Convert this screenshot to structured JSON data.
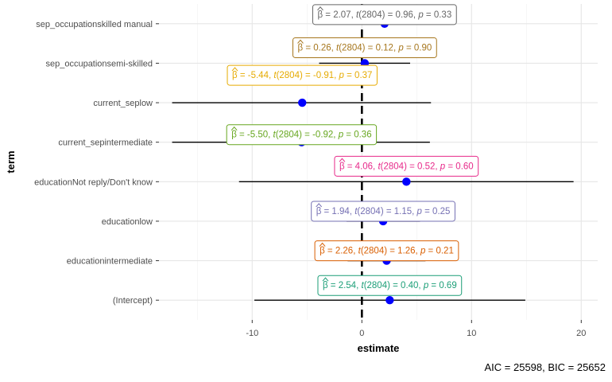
{
  "chart_data": {
    "type": "scatter",
    "xlabel": "estimate",
    "ylabel": "term",
    "xlim": [
      -18.5,
      21.5
    ],
    "x_ticks": [
      -10,
      0,
      10,
      20
    ],
    "reference_line_x": 0,
    "grid": true,
    "caption": "AIC = 25598, BIC = 25652",
    "terms": [
      {
        "term": "(Intercept)",
        "estimate": 2.54,
        "ci": [
          -9.8,
          14.9
        ],
        "color": "#1b9e77",
        "label": {
          "pre": "= 2.54, ",
          "df": "(2804)",
          "t": " = 0.40, ",
          "p": " = 0.69"
        }
      },
      {
        "term": "educationintermediate",
        "estimate": 2.26,
        "ci": [
          -1.3,
          5.8
        ],
        "color": "#d95f02",
        "label": {
          "pre": "= 2.26, ",
          "df": "(2804)",
          "t": " = 1.26, ",
          "p": " = 0.21"
        }
      },
      {
        "term": "educationlow",
        "estimate": 1.94,
        "ci": [
          -1.4,
          5.3
        ],
        "color": "#7570b3",
        "label": {
          "pre": "= 1.94, ",
          "df": "(2804)",
          "t": " = 1.15, ",
          "p": " = 0.25"
        }
      },
      {
        "term": "educationNot reply/Don't know",
        "estimate": 4.06,
        "ci": [
          -11.2,
          19.3
        ],
        "color": "#e7298a",
        "label": {
          "pre": "= 4.06, ",
          "df": "(2804)",
          "t": " = 0.52, ",
          "p": " = 0.60"
        }
      },
      {
        "term": "current_sepintermediate",
        "estimate": -5.5,
        "ci": [
          -17.3,
          6.2
        ],
        "color": "#66a61e",
        "label": {
          "pre": "= -5.50, ",
          "df": "(2804)",
          "t": " = -0.92, ",
          "p": " = 0.36"
        }
      },
      {
        "term": "current_seplow",
        "estimate": -5.44,
        "ci": [
          -17.3,
          6.3
        ],
        "color": "#e6ab02",
        "label": {
          "pre": "= -5.44, ",
          "df": "(2804)",
          "t": " = -0.91, ",
          "p": " = 0.37"
        }
      },
      {
        "term": "sep_occupationsemi-skilled",
        "estimate": 0.26,
        "ci": [
          -3.9,
          4.4
        ],
        "color": "#a6761d",
        "label": {
          "pre": "= 0.26, ",
          "df": "(2804)",
          "t": " = 0.12, ",
          "p": " = 0.90"
        }
      },
      {
        "term": "sep_occupationskilled manual",
        "estimate": 2.07,
        "ci": [
          -2.2,
          6.3
        ],
        "color": "#666666",
        "label": {
          "pre": "= 2.07, ",
          "df": "(2804)",
          "t": " = 0.96, ",
          "p": " = 0.33"
        }
      }
    ],
    "point_color": "#0000ff"
  }
}
